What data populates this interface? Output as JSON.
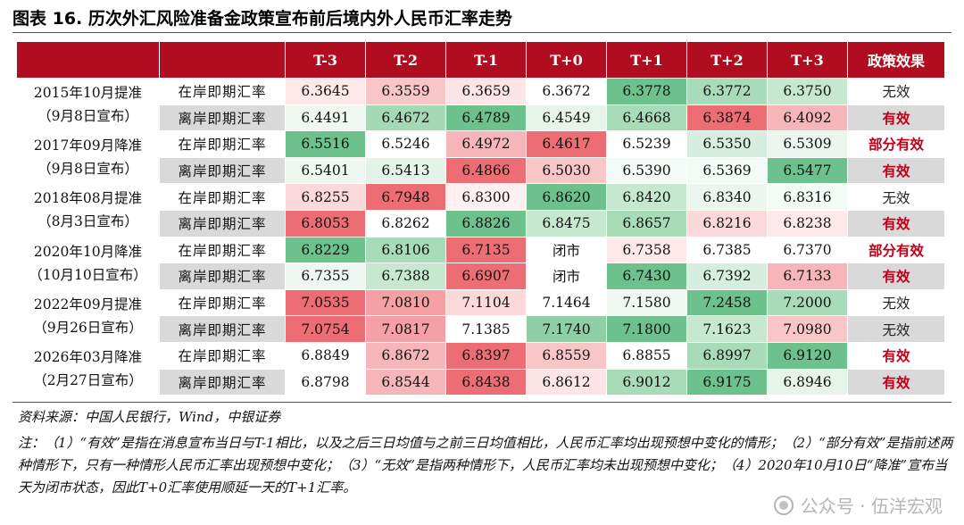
{
  "title": "图表 16. 历次外汇风险准备金政策宣布前后境内外人民币汇率走势",
  "header": {
    "event_col": "",
    "type_col": "",
    "periods": [
      "T-3",
      "T-2",
      "T-1",
      "T+0",
      "T+1",
      "T+2",
      "T+3"
    ],
    "effect_col": "政策效果"
  },
  "row_types": {
    "onshore": "在岸即期汇率",
    "offshore": "离岸即期汇率"
  },
  "events": [
    {
      "line1": "2015年10月提准",
      "line2": "（9月8日宣布）",
      "rows": [
        {
          "kind": "onshore",
          "values": [
            "6.3645",
            "6.3559",
            "6.3659",
            "6.3672",
            "6.3778",
            "6.3772",
            "6.3750"
          ],
          "colors": [
            "#fde9ea",
            "#f9c6c8",
            "#fde5e7",
            "#ffffff",
            "#6dc18c",
            "#a8dbb8",
            "#c5e8cf"
          ],
          "effect": "无效",
          "effect_level": "no"
        },
        {
          "kind": "offshore",
          "values": [
            "6.4491",
            "6.4672",
            "6.4789",
            "6.4549",
            "6.4668",
            "6.3874",
            "6.4092"
          ],
          "colors": [
            "#f0f8f2",
            "#a5d9b6",
            "#6dc18c",
            "#e6f4ea",
            "#a8dbb8",
            "#ec6e74",
            "#f6b6b9"
          ],
          "effect": "有效",
          "effect_level": "yes"
        }
      ]
    },
    {
      "line1": "2017年09月降准",
      "line2": "（9月8日宣布）",
      "rows": [
        {
          "kind": "onshore",
          "values": [
            "6.5516",
            "6.5246",
            "6.4972",
            "6.4617",
            "6.5239",
            "6.5350",
            "6.5309"
          ],
          "colors": [
            "#6dc18c",
            "#ffffff",
            "#f6b6b9",
            "#ec6e74",
            "#ffffff",
            "#d6eedd",
            "#eaf6ee"
          ],
          "effect": "部分有效",
          "effect_level": "part"
        },
        {
          "kind": "offshore",
          "values": [
            "6.5401",
            "6.5413",
            "6.4866",
            "6.5030",
            "6.5390",
            "6.5369",
            "6.5477"
          ],
          "colors": [
            "#eef8f1",
            "#e3f3e8",
            "#ec6e74",
            "#f9c6c8",
            "#f4faf5",
            "#f4faf5",
            "#6dc18c"
          ],
          "effect": "有效",
          "effect_level": "yes"
        }
      ]
    },
    {
      "line1": "2018年08月提准",
      "line2": "（8月3日宣布）",
      "rows": [
        {
          "kind": "onshore",
          "values": [
            "6.8255",
            "6.7948",
            "6.8300",
            "6.8620",
            "6.8420",
            "6.8340",
            "6.8316"
          ],
          "colors": [
            "#fbd9db",
            "#ec6e74",
            "#fef0f1",
            "#6dc18c",
            "#c5e8cf",
            "#eaf6ee",
            "#f4faf5"
          ],
          "effect": "无效",
          "effect_level": "no"
        },
        {
          "kind": "offshore",
          "values": [
            "6.8053",
            "6.8262",
            "6.8826",
            "6.8475",
            "6.8657",
            "6.8216",
            "6.8238"
          ],
          "colors": [
            "#ec6e74",
            "#ffffff",
            "#6dc18c",
            "#c5e8cf",
            "#a8dbb8",
            "#fbd9db",
            "#fde9ea"
          ],
          "effect": "有效",
          "effect_level": "yes"
        }
      ]
    },
    {
      "line1": "2020年10月降准",
      "line2": "（10月10日宣布）",
      "rows": [
        {
          "kind": "onshore",
          "values": [
            "6.8229",
            "6.8106",
            "6.7135",
            "闭市",
            "6.7358",
            "6.7385",
            "6.7370"
          ],
          "colors": [
            "#6dc18c",
            "#a8dbb8",
            "#ec6e74",
            "#ffffff",
            "#fde9ea",
            "#ffffff",
            "#ffffff"
          ],
          "effect": "部分有效",
          "effect_level": "part"
        },
        {
          "kind": "offshore",
          "values": [
            "6.7355",
            "6.7388",
            "6.6907",
            "闭市",
            "6.7430",
            "6.7392",
            "6.7133"
          ],
          "colors": [
            "#eef8f1",
            "#c5e8cf",
            "#ec6e74",
            "#ffffff",
            "#6dc18c",
            "#d6eedd",
            "#f6b6b9"
          ],
          "effect": "有效",
          "effect_level": "yes"
        }
      ]
    },
    {
      "line1": "2022年09月提准",
      "line2": "（9月26日宣布）",
      "rows": [
        {
          "kind": "onshore",
          "values": [
            "7.0535",
            "7.0810",
            "7.1104",
            "7.1464",
            "7.1580",
            "7.2458",
            "7.2000"
          ],
          "colors": [
            "#ec6e74",
            "#f4a0a4",
            "#fbd9db",
            "#ffffff",
            "#f0f8f2",
            "#6dc18c",
            "#a8dbb8"
          ],
          "effect": "无效",
          "effect_level": "no"
        },
        {
          "kind": "offshore",
          "values": [
            "7.0754",
            "7.0817",
            "7.1385",
            "7.1740",
            "7.1800",
            "7.1623",
            "7.0980"
          ],
          "colors": [
            "#ec6e74",
            "#f4a0a4",
            "#ffffff",
            "#8fcfa4",
            "#6dc18c",
            "#c5e8cf",
            "#f9c6c8"
          ],
          "effect": "无效",
          "effect_level": "no"
        }
      ]
    },
    {
      "line1": "2026年03月降准",
      "line2": "（2月27日宣布）",
      "rows": [
        {
          "kind": "onshore",
          "values": [
            "6.8849",
            "6.8672",
            "6.8397",
            "6.8559",
            "6.8855",
            "6.8997",
            "6.9120"
          ],
          "colors": [
            "#ffffff",
            "#f6b6b9",
            "#ec6e74",
            "#f9c6c8",
            "#ffffff",
            "#a8dbb8",
            "#6dc18c"
          ],
          "effect": "有效",
          "effect_level": "yes"
        },
        {
          "kind": "offshore",
          "values": [
            "6.8798",
            "6.8544",
            "6.8438",
            "6.8612",
            "6.9012",
            "6.9175",
            "6.8946"
          ],
          "colors": [
            "#ffffff",
            "#f6b6b9",
            "#ec6e74",
            "#fde5e7",
            "#a8dbb8",
            "#6dc18c",
            "#e6f4ea"
          ],
          "effect": "有效",
          "effect_level": "yes"
        }
      ]
    }
  ],
  "source": "资料来源：中国人民银行，Wind，中银证券",
  "note": "注：（1）“有效”是指在消息宣布当日与T-1相比，以及之后三日均值与之前三日均值相比，人民币汇率均出现预想中变化的情形；（2）“部分有效”是指前述两种情形下，只有一种情形人民币汇率出现预想中变化；（3）“无效”是指两种情形下，人民币汇率均未出现预想中变化；（4）2020年10月10日“降准”宣布当天为闭市状态，因此T+0汇率使用顺延一天的T+1汇率。",
  "watermark": "公众号 · 伍洋宏观"
}
